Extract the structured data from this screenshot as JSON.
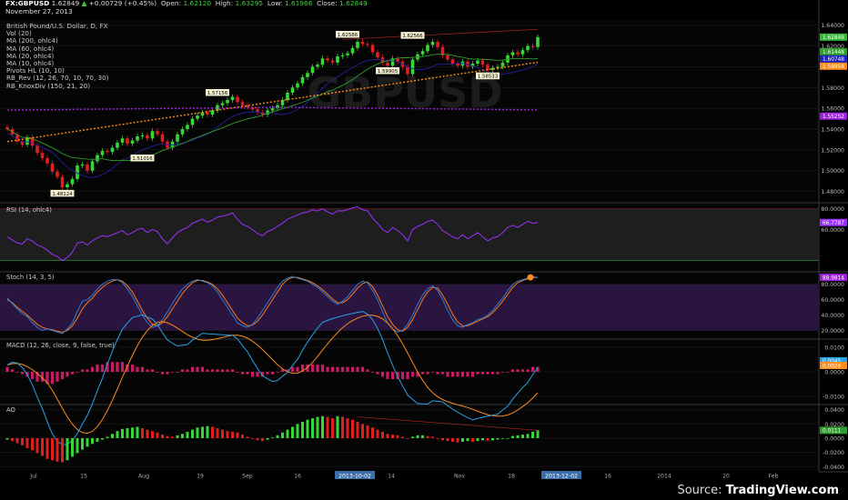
{
  "header": {
    "symbol": "FX:GBPUSD",
    "last": "1.62849",
    "change": "+0.00729 (+0.45%)",
    "open_label": "Open:",
    "open": "1.62120",
    "high_label": "High:",
    "high": "1.63295",
    "low_label": "Low:",
    "low": "1.61966",
    "close_label": "Close:",
    "close": "1.62849",
    "date": "November 27, 2013"
  },
  "main_indicators": [
    "British Pound/U.S. Dollar, D, FX",
    "Vol (20)",
    "MA (200, ohlc4)",
    "MA (60, ohlc4)",
    "MA (20, ohlc4)",
    "MA (10, ohlc4)",
    "Pivots HL (10, 10)",
    "RB_Rev (12, 26, 70, 10, 70, 30)",
    "RB_KnoxDiv (150, 21, 20)"
  ],
  "watermark": "GBPUSD",
  "panes": {
    "rsi": "RSI (14, ohlc4)",
    "stoch": "Stoch (14, 3, 5)",
    "macd": "MACD (12, 26, close, 9, false, true)",
    "ao": "AO"
  },
  "footer": {
    "source": "Source:",
    "brand": "TradingView.com"
  },
  "colors": {
    "up": "#35d835",
    "down": "#e02020",
    "ma200": "#a020e0",
    "ma60": "#ff8c1a",
    "ma20": "#2e9e2e",
    "ma10": "#2020a0",
    "rsi": "#9b30ff",
    "stoch_k": "#2a7fd4",
    "stoch_d": "#ff7a1a",
    "macd_hist_up": "#cc1a66",
    "macd_line": "#29a3e6",
    "signal": "#ff8c1a",
    "ao_up": "#35d835",
    "ao_down": "#e02020"
  },
  "chart_data": [
    {
      "type": "candlestick",
      "pane": "main",
      "title": "British Pound/U.S. Dollar, D, FX",
      "yticks": [
        1.48,
        1.5,
        1.52,
        1.54,
        1.56,
        1.58,
        1.6,
        1.62,
        1.64
      ],
      "ytick_labels": [
        "1.48000",
        "1.50000",
        "1.52000",
        "1.54000",
        "1.56000",
        "1.58000",
        "1.60000",
        "1.62000",
        "1.64000"
      ],
      "ylim": [
        1.47,
        1.645
      ],
      "closes": [
        1.54,
        1.535,
        1.528,
        1.525,
        1.532,
        1.524,
        1.517,
        1.512,
        1.507,
        1.499,
        1.494,
        1.484,
        1.487,
        1.492,
        1.505,
        1.506,
        1.5,
        1.509,
        1.515,
        1.519,
        1.518,
        1.522,
        1.527,
        1.531,
        1.526,
        1.529,
        1.533,
        1.534,
        1.531,
        1.538,
        1.535,
        1.528,
        1.522,
        1.528,
        1.535,
        1.54,
        1.544,
        1.55,
        1.553,
        1.556,
        1.554,
        1.558,
        1.563,
        1.565,
        1.568,
        1.571,
        1.566,
        1.563,
        1.561,
        1.559,
        1.556,
        1.554,
        1.558,
        1.56,
        1.563,
        1.568,
        1.575,
        1.58,
        1.584,
        1.59,
        1.594,
        1.6,
        1.602,
        1.608,
        1.606,
        1.604,
        1.61,
        1.611,
        1.613,
        1.618,
        1.624,
        1.622,
        1.621,
        1.614,
        1.609,
        1.604,
        1.601,
        1.608,
        1.605,
        1.6,
        1.593,
        1.607,
        1.612,
        1.615,
        1.621,
        1.624,
        1.619,
        1.611,
        1.607,
        1.603,
        1.601,
        1.605,
        1.6,
        1.603,
        1.606,
        1.602,
        1.597,
        1.599,
        1.6,
        1.604,
        1.611,
        1.614,
        1.612,
        1.616,
        1.62,
        1.619,
        1.6285
      ],
      "last_value_labels": [
        "1.62849",
        "1.61448",
        "1.60748",
        "1.59959",
        "1.55252"
      ],
      "pivot_labels": [
        "1.48124",
        "1.51016",
        "1.57156",
        "1.62586",
        "1.62566",
        "1.59905",
        "1.58533"
      ]
    },
    {
      "type": "line",
      "pane": "RSI (14, ohlc4)",
      "yticks": [
        60,
        80
      ],
      "ytick_labels": [
        "60.0000",
        "80.0000"
      ],
      "ylim": [
        20,
        85
      ],
      "bands": [
        30,
        80
      ],
      "values": [
        53,
        50,
        47,
        46,
        51,
        49,
        45,
        43,
        40,
        36,
        34,
        30,
        33,
        38,
        47,
        48,
        45,
        49,
        52,
        54,
        53,
        55,
        57,
        59,
        55,
        57,
        60,
        61,
        57,
        60,
        58,
        51,
        46,
        52,
        57,
        60,
        62,
        66,
        68,
        70,
        67,
        69,
        72,
        73,
        74,
        76,
        70,
        65,
        63,
        60,
        56,
        54,
        58,
        60,
        63,
        66,
        70,
        72,
        74,
        76,
        77,
        79,
        78,
        80,
        77,
        75,
        78,
        78,
        79,
        81,
        82,
        79,
        78,
        71,
        66,
        60,
        57,
        62,
        59,
        55,
        49,
        60,
        63,
        65,
        68,
        69,
        65,
        59,
        56,
        53,
        51,
        55,
        51,
        54,
        57,
        53,
        49,
        52,
        53,
        57,
        62,
        64,
        62,
        65,
        68,
        66,
        66.7787
      ],
      "last_value_label": "66.7787"
    },
    {
      "type": "line",
      "pane": "Stoch (14, 3, 5)",
      "yticks": [
        20,
        40,
        60,
        80
      ],
      "ytick_labels": [
        "20.0000",
        "40.0000",
        "60.0000",
        "80.0000"
      ],
      "ylim": [
        10,
        95
      ],
      "series": [
        {
          "values": [
            62,
            55,
            48,
            42,
            38,
            30,
            24,
            20,
            22,
            20,
            18,
            16,
            22,
            30,
            45,
            58,
            60,
            66,
            74,
            80,
            84,
            86,
            86,
            82,
            74,
            64,
            52,
            40,
            30,
            24,
            26,
            34,
            44,
            55,
            65,
            74,
            80,
            84,
            86,
            84,
            82,
            78,
            70,
            60,
            50,
            40,
            30,
            26,
            24,
            28,
            36,
            46,
            56,
            66,
            76,
            84,
            88,
            90,
            88,
            86,
            84,
            80,
            76,
            70,
            64,
            58,
            54,
            58,
            64,
            72,
            80,
            84,
            82,
            72,
            60,
            44,
            30,
            22,
            18,
            20,
            28,
            40,
            54,
            66,
            74,
            78,
            72,
            60,
            46,
            34,
            26,
            24,
            28,
            30,
            34,
            36,
            40,
            46,
            54,
            62,
            72,
            80,
            84,
            86,
            88,
            90,
            88.98
          ]
        },
        {
          "values": [
            60,
            56,
            50,
            45,
            40,
            34,
            28,
            24,
            22,
            21,
            19,
            18,
            20,
            26,
            36,
            48,
            56,
            62,
            70,
            76,
            81,
            84,
            86,
            84,
            78,
            70,
            58,
            46,
            36,
            28,
            26,
            30,
            38,
            48,
            58,
            68,
            76,
            82,
            85,
            85,
            83,
            80,
            74,
            66,
            56,
            46,
            36,
            30,
            26,
            27,
            32,
            40,
            50,
            60,
            70,
            80,
            86,
            89,
            89,
            87,
            85,
            82,
            78,
            73,
            67,
            61,
            56,
            56,
            60,
            67,
            75,
            81,
            83,
            77,
            66,
            52,
            38,
            28,
            21,
            19,
            24,
            34,
            47,
            60,
            70,
            76,
            75,
            66,
            54,
            41,
            31,
            26,
            26,
            29,
            32,
            35,
            38,
            43,
            50,
            58,
            67,
            76,
            82,
            85,
            87,
            89,
            89
          ]
        }
      ],
      "last_value_label": "88.9814"
    },
    {
      "type": "bar",
      "pane": "MACD (12, 26, close, 9, false, true)",
      "yticks": [
        -0.01,
        0.0,
        0.01
      ],
      "ytick_labels": [
        "-0.0100",
        "0.0000",
        "0.0100"
      ],
      "ylim": [
        -0.013,
        0.013
      ],
      "histogram": [
        2,
        1,
        0,
        -1,
        -2,
        -3,
        -4,
        -4,
        -5,
        -5,
        -4,
        -3,
        -2,
        -1,
        0,
        1,
        1,
        2,
        3,
        3,
        4,
        4,
        4,
        4,
        3,
        3,
        2,
        2,
        1,
        1,
        0,
        -1,
        -1,
        0,
        0,
        1,
        1,
        2,
        2,
        2,
        1,
        1,
        1,
        1,
        1,
        1,
        0,
        -1,
        -1,
        -2,
        -2,
        -2,
        -1,
        -1,
        0,
        1,
        1,
        2,
        2,
        3,
        3,
        3,
        3,
        3,
        2,
        2,
        2,
        2,
        2,
        2,
        2,
        2,
        1,
        0,
        -1,
        -2,
        -3,
        -3,
        -3,
        -3,
        -3,
        -2,
        -2,
        -1,
        -1,
        0,
        -1,
        -1,
        -2,
        -2,
        -2,
        -2,
        -2,
        -2,
        -1,
        -1,
        -1,
        -1,
        -1,
        0,
        0,
        1,
        1,
        1,
        1,
        2,
        2
      ],
      "histogram_units": "x0.001",
      "last_value_labels": [
        "0.0045",
        "0.0026"
      ]
    },
    {
      "type": "bar",
      "pane": "AO",
      "yticks": [
        -0.04,
        -0.02,
        0.0,
        0.02,
        0.04
      ],
      "ytick_labels": [
        "-0.0400",
        "-0.0200",
        "0.0000",
        "0.0200",
        "0.0400"
      ],
      "ylim": [
        -0.046,
        0.046
      ],
      "values": [
        -0.002,
        -0.004,
        -0.007,
        -0.01,
        -0.014,
        -0.017,
        -0.021,
        -0.025,
        -0.029,
        -0.031,
        -0.033,
        -0.034,
        -0.031,
        -0.026,
        -0.021,
        -0.016,
        -0.012,
        -0.008,
        -0.005,
        -0.002,
        0.002,
        0.006,
        0.01,
        0.013,
        0.014,
        0.015,
        0.016,
        0.014,
        0.012,
        0.01,
        0.008,
        0.005,
        0.003,
        0.002,
        0.004,
        0.006,
        0.009,
        0.012,
        0.015,
        0.016,
        0.017,
        0.016,
        0.014,
        0.012,
        0.01,
        0.009,
        0.008,
        0.005,
        0.002,
        -0.001,
        -0.003,
        -0.004,
        -0.002,
        0.001,
        0.004,
        0.008,
        0.012,
        0.016,
        0.02,
        0.023,
        0.026,
        0.028,
        0.03,
        0.031,
        0.03,
        0.028,
        0.031,
        0.03,
        0.028,
        0.026,
        0.023,
        0.02,
        0.018,
        0.015,
        0.012,
        0.009,
        0.006,
        0.005,
        0.004,
        0.002,
        0.0,
        0.002,
        0.004,
        0.004,
        0.003,
        0.002,
        -0.001,
        -0.003,
        -0.004,
        -0.005,
        -0.006,
        -0.005,
        -0.004,
        -0.005,
        -0.004,
        -0.003,
        -0.004,
        -0.003,
        -0.002,
        -0.001,
        0.0,
        0.003,
        0.004,
        0.005,
        0.006,
        0.009,
        0.0111
      ],
      "last_value_label": "0.0111"
    }
  ],
  "x_axis": {
    "labels": [
      "Jul",
      "15",
      "Aug",
      "19",
      "Sep",
      "16",
      "2013-10-02",
      "14",
      "Nov",
      "18",
      "2013-12-02",
      "16",
      "2014",
      "20",
      "Feb"
    ],
    "highlight_labels": [
      "2013-10-02",
      "2013-12-02"
    ]
  }
}
